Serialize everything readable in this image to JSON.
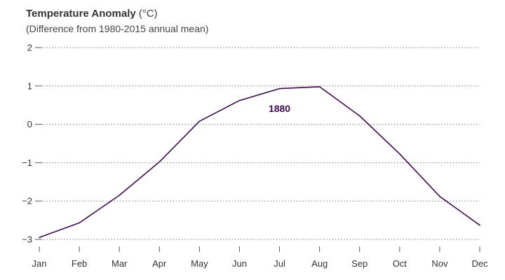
{
  "chart_data": {
    "type": "line",
    "title": "Temperature Anomaly",
    "title_unit": "(°C)",
    "subtitle": "(Difference from 1980-2015 annual mean)",
    "xlabel": "",
    "ylabel": "",
    "categories": [
      "Jan",
      "Feb",
      "Mar",
      "Apr",
      "May",
      "Jun",
      "Jul",
      "Aug",
      "Sep",
      "Oct",
      "Nov",
      "Dec"
    ],
    "series": [
      {
        "values": [
          -2.95,
          -2.57,
          -1.85,
          -0.98,
          0.08,
          0.62,
          0.93,
          0.98,
          0.22,
          -0.77,
          -1.88,
          -2.63
        ],
        "color": "#3d0a4e"
      }
    ],
    "yticks": [
      2,
      1,
      0,
      -1,
      -2,
      -3
    ],
    "ytick_labels": [
      "2",
      "1",
      "0",
      "−1",
      "−2",
      "−3"
    ],
    "ylim": [
      -3,
      2
    ],
    "grid": "dotted horizontal",
    "annotation": {
      "text": "1880",
      "x": "Jul",
      "y": 0.32,
      "color": "#3d0a4e"
    }
  }
}
